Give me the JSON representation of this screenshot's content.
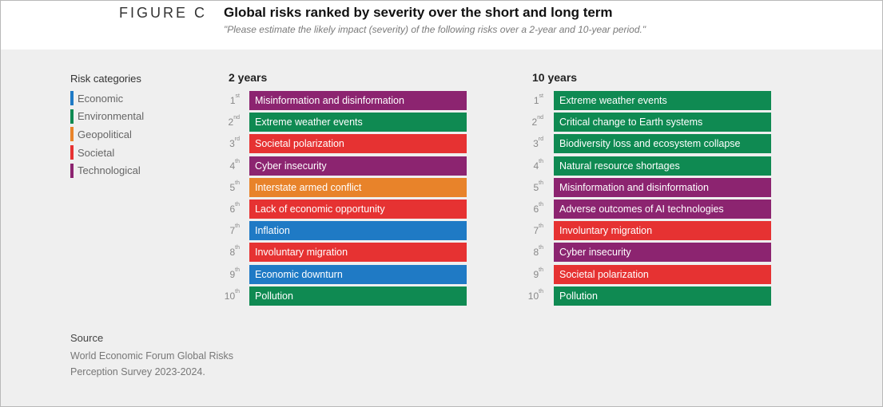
{
  "figure_label": "FIGURE C",
  "title": "Global risks ranked by severity over the short and long term",
  "subtitle": "\"Please estimate the likely impact (severity) of the following risks over a 2-year and 10-year period.\"",
  "legend": {
    "title": "Risk categories",
    "items": [
      {
        "label": "Economic",
        "color": "#1f7ac5"
      },
      {
        "label": "Environmental",
        "color": "#0f8a52"
      },
      {
        "label": "Geopolitical",
        "color": "#e8832a"
      },
      {
        "label": "Societal",
        "color": "#e63232"
      },
      {
        "label": "Technological",
        "color": "#8c2470"
      }
    ]
  },
  "source": {
    "title": "Source",
    "text": "World Economic Forum Global Risks Perception Survey 2023-2024."
  },
  "chart_data": {
    "type": "table",
    "columns": [
      {
        "title": "2 years",
        "ranks": [
          {
            "rank": "1",
            "suffix": "st",
            "risk": "Misinformation and disinformation",
            "category": "Technological"
          },
          {
            "rank": "2",
            "suffix": "nd",
            "risk": "Extreme weather events",
            "category": "Environmental"
          },
          {
            "rank": "3",
            "suffix": "rd",
            "risk": "Societal polarization",
            "category": "Societal"
          },
          {
            "rank": "4",
            "suffix": "th",
            "risk": "Cyber insecurity",
            "category": "Technological"
          },
          {
            "rank": "5",
            "suffix": "th",
            "risk": "Interstate armed conflict",
            "category": "Geopolitical"
          },
          {
            "rank": "6",
            "suffix": "th",
            "risk": "Lack of economic opportunity",
            "category": "Societal"
          },
          {
            "rank": "7",
            "suffix": "th",
            "risk": "Inflation",
            "category": "Economic"
          },
          {
            "rank": "8",
            "suffix": "th",
            "risk": "Involuntary migration",
            "category": "Societal"
          },
          {
            "rank": "9",
            "suffix": "th",
            "risk": "Economic downturn",
            "category": "Economic"
          },
          {
            "rank": "10",
            "suffix": "th",
            "risk": "Pollution",
            "category": "Environmental"
          }
        ]
      },
      {
        "title": "10 years",
        "ranks": [
          {
            "rank": "1",
            "suffix": "st",
            "risk": "Extreme weather events",
            "category": "Environmental"
          },
          {
            "rank": "2",
            "suffix": "nd",
            "risk": "Critical change to Earth systems",
            "category": "Environmental"
          },
          {
            "rank": "3",
            "suffix": "rd",
            "risk": "Biodiversity loss and ecosystem collapse",
            "category": "Environmental"
          },
          {
            "rank": "4",
            "suffix": "th",
            "risk": "Natural resource shortages",
            "category": "Environmental"
          },
          {
            "rank": "5",
            "suffix": "th",
            "risk": "Misinformation and disinformation",
            "category": "Technological"
          },
          {
            "rank": "6",
            "suffix": "th",
            "risk": "Adverse outcomes of AI technologies",
            "category": "Technological"
          },
          {
            "rank": "7",
            "suffix": "th",
            "risk": "Involuntary migration",
            "category": "Societal"
          },
          {
            "rank": "8",
            "suffix": "th",
            "risk": "Cyber insecurity",
            "category": "Technological"
          },
          {
            "rank": "9",
            "suffix": "th",
            "risk": "Societal polarization",
            "category": "Societal"
          },
          {
            "rank": "10",
            "suffix": "th",
            "risk": "Pollution",
            "category": "Environmental"
          }
        ]
      }
    ]
  }
}
